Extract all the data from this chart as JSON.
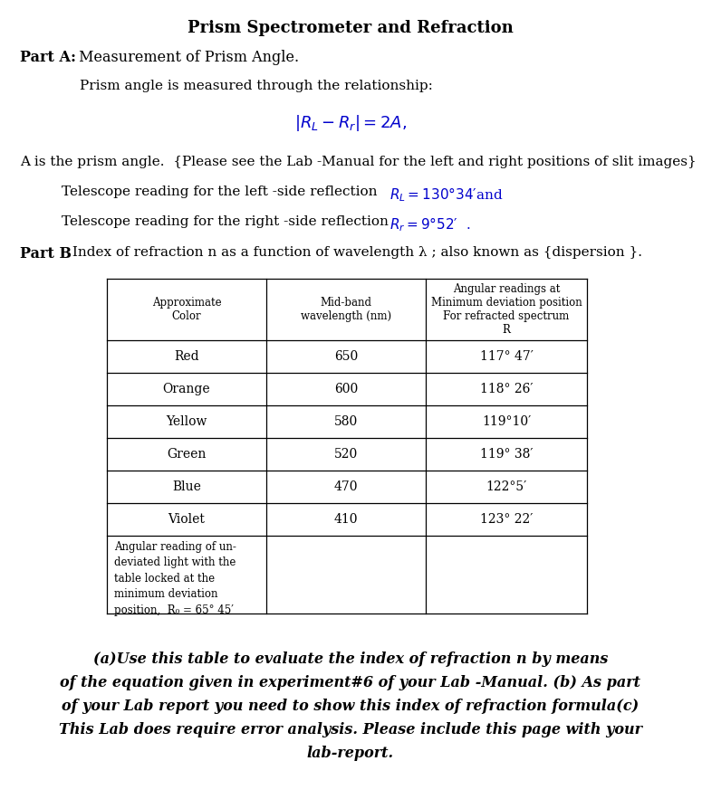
{
  "title": "Prism Spectrometer and Refraction",
  "part_a_label": "Part A:",
  "part_a_text": " Measurement of Prism Angle.",
  "line1": "Prism angle is measured through the relationship:",
  "line2_normal": "A is the prism angle.  {Please see the Lab -Manual for the left and right positions of slit images}",
  "line3_pre": "Telescope reading for the left -side reflection  ",
  "line3_math": "Rⱼ = 130°34′and",
  "line4_pre": "Telescope reading for the right -side reflection  ",
  "line4_math": "Rⱼ = 9° 52′ .",
  "part_b_label": "Part B",
  "part_b_text": " Index of refraction n as a function of wavelength λ ; also known as {dispersion }.",
  "table_headers": [
    "Approximate\nColor",
    "Mid-band\nwavelength (nm)",
    "Angular readings at\nMinimum deviation position\nFor refracted spectrum\nR"
  ],
  "table_rows": [
    [
      "Red",
      "650",
      "117° 47′"
    ],
    [
      "Orange",
      "600",
      "118° 26′"
    ],
    [
      "Yellow",
      "580",
      "119°10′"
    ],
    [
      "Green",
      "520",
      "119° 38′"
    ],
    [
      "Blue",
      "470",
      "122°5′"
    ],
    [
      "Violet",
      "410",
      "123° 22′"
    ]
  ],
  "last_row_text": "Angular reading of un-\ndeviated light with the\ntable locked at the\nminimum deviation\nposition,  R₀ = 65° 45′",
  "footer_line1": "(a)Use this table to evaluate the index of refraction n by means",
  "footer_line2": "of the equation given in experiment#6 of your Lab -Manual. (b) As part",
  "footer_line3": "of your Lab report you need to show this index of refraction formula(c)",
  "footer_line4": "This Lab does require error analysis. Please include this page with your",
  "footer_line5": "lab-report.",
  "bg_color": "#ffffff",
  "text_color": "#000000",
  "formula_color": "#0000cc",
  "telescope_math_color": "#0000cc"
}
